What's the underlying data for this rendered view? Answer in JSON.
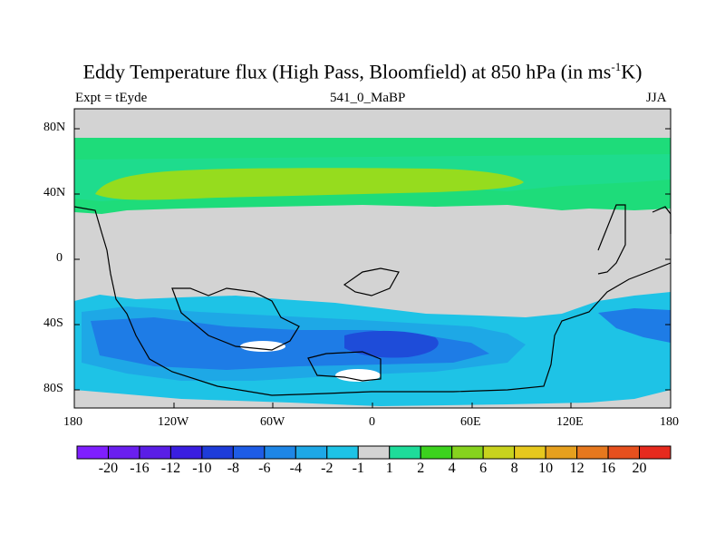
{
  "title_main": "Eddy Temperature flux (High Pass, Bloomfield) at 850 hPa (in ms",
  "title_sup": "-1",
  "title_end": "K)",
  "left_label": "Expt = tEyde",
  "center_label": "541_0_MaBP",
  "right_label": "JJA",
  "lat_ticks": [
    "80N",
    "40N",
    "0",
    "40S",
    "80S"
  ],
  "lon_ticks": [
    "180",
    "120W",
    "60W",
    "0",
    "60E",
    "120E",
    "180"
  ],
  "colorbar": {
    "labels": [
      "-20",
      "-16",
      "-12",
      "-10",
      "-8",
      "-6",
      "-4",
      "-2",
      "-1",
      "1",
      "2",
      "4",
      "6",
      "8",
      "10",
      "12",
      "16",
      "20"
    ],
    "colors": [
      "#7f1fff",
      "#6a1fef",
      "#5a1ee6",
      "#3a1ee0",
      "#1e3cd9",
      "#1e5ce6",
      "#1e86e6",
      "#1ea8e6",
      "#1ec3e6",
      "#d3d3d3",
      "#1edc9a",
      "#3cd21e",
      "#86d21e",
      "#c8d21e",
      "#e6c81e",
      "#e6a01e",
      "#e6781e",
      "#e6501e",
      "#e62a1e"
    ]
  },
  "colors": {
    "land_missing": "#d3d3d3",
    "green_band": "#1edc7a",
    "yellowgreen_band": "#96dc1e",
    "south_light": "#1ec3e6",
    "south_mid": "#1ea8e6",
    "south_dark": "#1e7ce6",
    "south_deep": "#1e4cd9"
  }
}
